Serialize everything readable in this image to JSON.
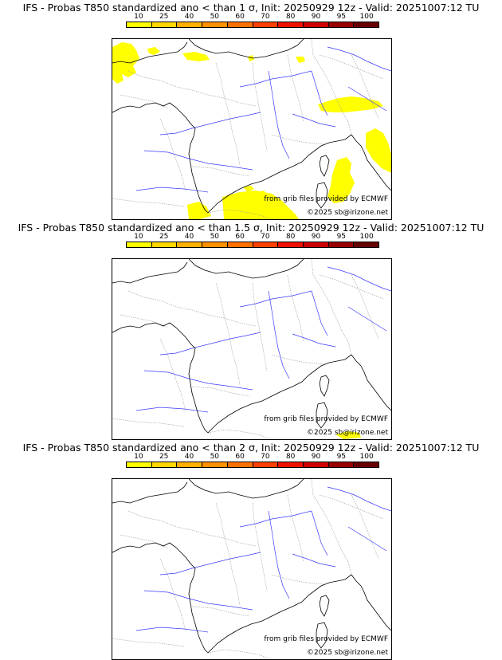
{
  "colorbar": {
    "labels": [
      "10",
      "25",
      "40",
      "50",
      "60",
      "70",
      "80",
      "90",
      "95",
      "100"
    ],
    "colors": [
      "#ffff00",
      "#ffd700",
      "#ffb000",
      "#ff9000",
      "#ff7000",
      "#ff4000",
      "#ee1000",
      "#cc0000",
      "#990000",
      "#660000"
    ]
  },
  "panels": [
    {
      "title": "IFS - Probas T850  standardized ano < than 1 σ, Init: 20250929 12z - Valid: 20251007:12 TU",
      "probability_fill_color": "#ffff00",
      "credit_grib": "from grib files provided by ECMWF",
      "credit_copyright": "©2025 sb@irizone.net"
    },
    {
      "title": "IFS - Probas T850  standardized ano < than 1.5 σ, Init: 20250929 12z - Valid: 20251007:12 TU",
      "probability_fill_color": "#ffff00",
      "credit_grib": "from grib files provided by ECMWF",
      "credit_copyright": "©2025 sb@irizone.net"
    },
    {
      "title": "IFS - Probas T850  standardized ano < than 2 σ, Init: 20250929 12z - Valid: 20251007:12 TU",
      "probability_fill_color": "#ffff00",
      "credit_grib": "from grib files provided by ECMWF",
      "credit_copyright": "©2025 sb@irizone.net"
    }
  ]
}
